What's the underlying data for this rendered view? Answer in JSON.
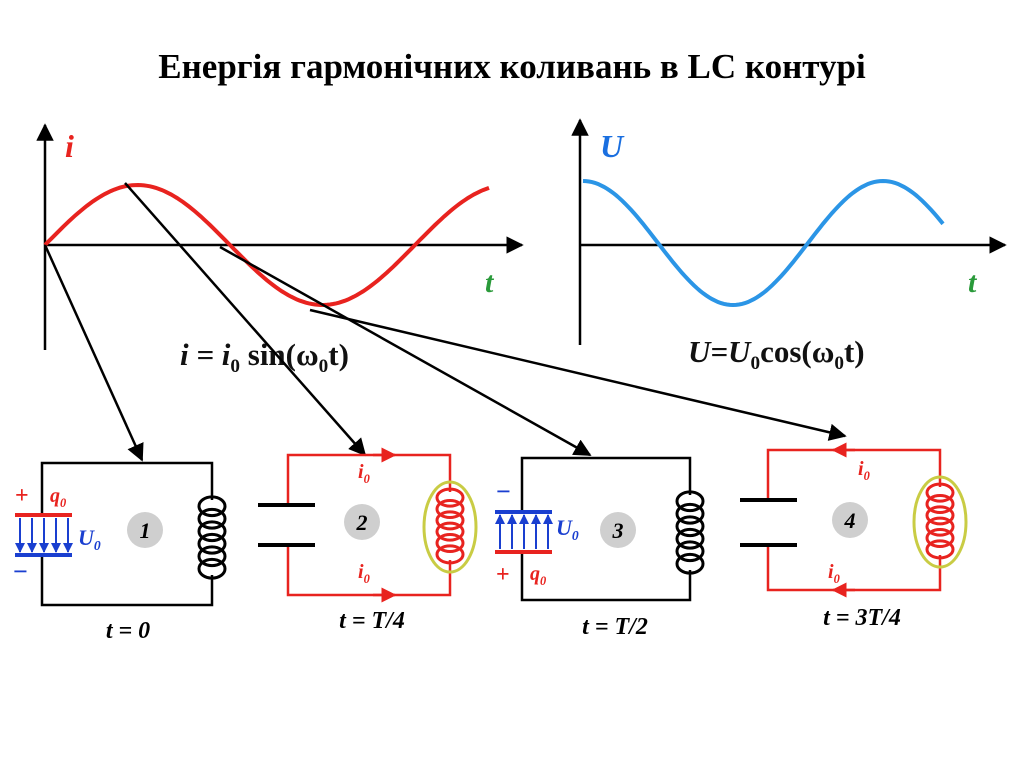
{
  "title": "Енергія гармонічних коливань в LC контурі",
  "graphs": [
    {
      "y_label": "i",
      "x_label": "t",
      "formula": [
        "i = i",
        "0",
        " sin(ω",
        "0",
        "t)"
      ]
    },
    {
      "y_label": "U",
      "x_label": "t",
      "formula": [
        "U=U",
        "0",
        "cos(ω",
        "0",
        "t)"
      ]
    }
  ],
  "circuits": [
    {
      "number": "1",
      "time": "t = 0",
      "plus": "+",
      "minus": "−",
      "charge": [
        "q",
        "0"
      ],
      "voltage": [
        "U",
        "0"
      ]
    },
    {
      "number": "2",
      "time": "t = T/4",
      "currents": [
        [
          "i",
          "0"
        ],
        [
          "i",
          "0"
        ]
      ]
    },
    {
      "number": "3",
      "time": "t = T/2",
      "plus": "+",
      "minus": "−",
      "charge": [
        "q",
        "0"
      ],
      "voltage": [
        "U",
        "0"
      ]
    },
    {
      "number": "4",
      "time": "t = 3T/4",
      "currents": [
        [
          "i",
          "0"
        ],
        [
          "i",
          "0"
        ]
      ]
    }
  ]
}
